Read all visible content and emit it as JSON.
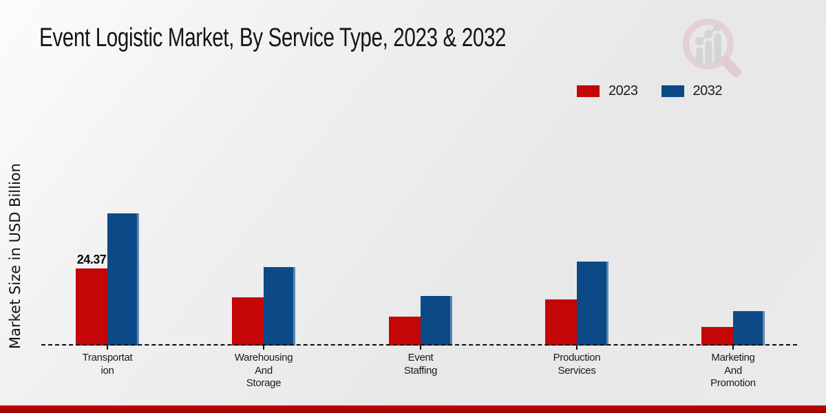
{
  "header": {
    "title": "Event Logistic Market, By Service Type, 2023 & 2032"
  },
  "legend": {
    "items": [
      {
        "label": "2023",
        "color": "#c40606"
      },
      {
        "label": "2032",
        "color": "#0b4a87"
      }
    ]
  },
  "logo": {
    "name": "market-research-future-watermark",
    "glass_color": "#dfb6ba",
    "bars_color": "#bcbcc2"
  },
  "chart_data": {
    "type": "bar",
    "title": "Event Logistic Market, By Service Type, 2023 & 2032",
    "xlabel": "",
    "ylabel": "Market Size in USD Billion",
    "ylim": [
      0,
      45
    ],
    "grid": false,
    "legend_position": "top-right",
    "baseline_style": "dashed",
    "categories": [
      "Transportation",
      "Warehousing And Storage",
      "Event Staffing",
      "Production Services",
      "Marketing And Promotion"
    ],
    "category_display_lines": [
      [
        "Transportat",
        "ion"
      ],
      [
        "Warehousing",
        "And",
        "Storage"
      ],
      [
        "Event",
        "Staffing"
      ],
      [
        "Production",
        "Services"
      ],
      [
        "Marketing",
        "And",
        "Promotion"
      ]
    ],
    "series": [
      {
        "name": "2023",
        "color": "#c40606",
        "values": [
          24.37,
          15.2,
          9.1,
          14.6,
          5.9
        ]
      },
      {
        "name": "2032",
        "color": "#0b4a87",
        "values": [
          41.7,
          24.8,
          15.6,
          26.5,
          10.8
        ]
      }
    ],
    "bar_value_labels": [
      {
        "series_index": 0,
        "category_index": 0,
        "text": "24.37"
      }
    ]
  },
  "footer": {
    "accent_top_color": "#cb0404",
    "accent_bottom_color": "#8f0101"
  }
}
